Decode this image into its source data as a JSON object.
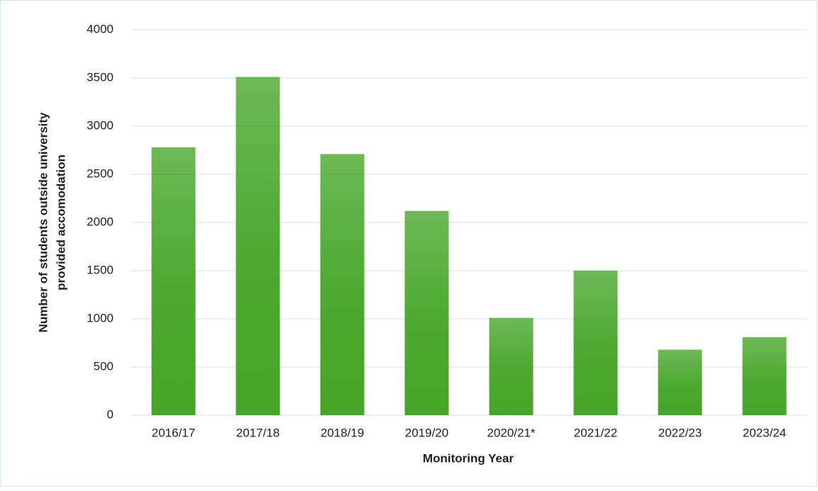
{
  "chart_data": {
    "type": "bar",
    "categories": [
      "2016/17",
      "2017/18",
      "2018/19",
      "2019/20",
      "2020/21*",
      "2021/22",
      "2022/23",
      "2023/24"
    ],
    "values": [
      2780,
      3510,
      2710,
      2120,
      1010,
      1500,
      680,
      810
    ],
    "color": "#45a526",
    "ylim": [
      0,
      4000
    ],
    "yticks": [
      0,
      500,
      1000,
      1500,
      2000,
      2500,
      3000,
      3500,
      4000
    ],
    "grid": true,
    "xlabel": "Monitoring Year",
    "ylabel": [
      "Number of students outside university",
      "provided accomodation"
    ]
  }
}
